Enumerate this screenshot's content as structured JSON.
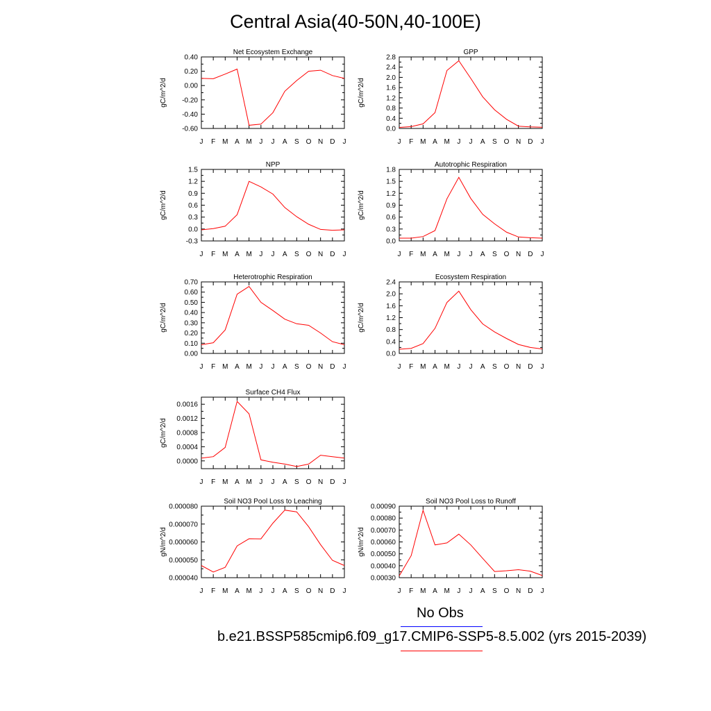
{
  "title": "Central Asia(40-50N,40-100E)",
  "months": [
    "J",
    "F",
    "M",
    "A",
    "M",
    "J",
    "J",
    "A",
    "S",
    "O",
    "N",
    "D",
    "J"
  ],
  "legend": {
    "obs_label": "No Obs",
    "model_label": "b.e21.BSSP585cmip6.f09_g17.CMIP6-SSP5-8.5.002 (yrs 2015-2039)",
    "obs_color": "#0000ff",
    "model_color": "#ff0000"
  },
  "chart_data": [
    {
      "type": "line",
      "title": "Net Ecosystem Exchange",
      "ylabel": "gC/m^2/d",
      "ylim": [
        -0.6,
        0.4
      ],
      "yticks": [
        -0.6,
        -0.4,
        -0.2,
        0.0,
        0.2,
        0.4
      ],
      "ytick_labels": [
        "-0.60",
        "-0.40",
        "-0.20",
        "0.00",
        "0.20",
        "0.40"
      ],
      "values": [
        0.1,
        0.095,
        0.16,
        0.23,
        -0.555,
        -0.54,
        -0.38,
        -0.08,
        0.07,
        0.2,
        0.215,
        0.14,
        0.1
      ],
      "color": "#ff0000"
    },
    {
      "type": "line",
      "title": "GPP",
      "ylabel": "gC/m^2/d",
      "ylim": [
        0,
        2.8
      ],
      "yticks": [
        0,
        0.4,
        0.8,
        1.2,
        1.6,
        2.0,
        2.4,
        2.8
      ],
      "ytick_labels": [
        "0.0",
        "0.4",
        "0.8",
        "1.2",
        "1.6",
        "2.0",
        "2.4",
        "2.8"
      ],
      "values": [
        0.04,
        0.07,
        0.18,
        0.62,
        2.27,
        2.65,
        1.96,
        1.24,
        0.73,
        0.36,
        0.09,
        0.06,
        0.05
      ],
      "color": "#ff0000"
    },
    {
      "type": "line",
      "title": "NPP",
      "ylabel": "gC/m^2/d",
      "ylim": [
        -0.3,
        1.5
      ],
      "yticks": [
        -0.3,
        0.0,
        0.3,
        0.6,
        0.9,
        1.2,
        1.5
      ],
      "ytick_labels": [
        "-0.3",
        "0.0",
        "0.3",
        "0.6",
        "0.9",
        "1.2",
        "1.5"
      ],
      "values": [
        -0.02,
        0.01,
        0.07,
        0.36,
        1.2,
        1.06,
        0.88,
        0.54,
        0.31,
        0.12,
        -0.01,
        -0.03,
        -0.02
      ],
      "color": "#ff0000"
    },
    {
      "type": "line",
      "title": "Autotrophic Respiration",
      "ylabel": "gC/m^2/d",
      "ylim": [
        0,
        1.8
      ],
      "yticks": [
        0,
        0.3,
        0.6,
        0.9,
        1.2,
        1.5,
        1.8
      ],
      "ytick_labels": [
        "0.0",
        "0.3",
        "0.6",
        "0.9",
        "1.2",
        "1.5",
        "1.8"
      ],
      "values": [
        0.07,
        0.07,
        0.11,
        0.26,
        1.06,
        1.6,
        1.07,
        0.67,
        0.43,
        0.22,
        0.1,
        0.08,
        0.07
      ],
      "color": "#ff0000"
    },
    {
      "type": "line",
      "title": "Heterotrophic Respiration",
      "ylabel": "gC/m^2/d",
      "ylim": [
        0,
        0.7
      ],
      "yticks": [
        0,
        0.1,
        0.2,
        0.3,
        0.4,
        0.5,
        0.6,
        0.7
      ],
      "ytick_labels": [
        "0.00",
        "0.10",
        "0.20",
        "0.30",
        "0.40",
        "0.50",
        "0.60",
        "0.70"
      ],
      "values": [
        0.085,
        0.105,
        0.23,
        0.58,
        0.655,
        0.5,
        0.42,
        0.335,
        0.29,
        0.275,
        0.2,
        0.115,
        0.085
      ],
      "color": "#ff0000"
    },
    {
      "type": "line",
      "title": "Ecosystem Respiration",
      "ylabel": "gC/m^2/d",
      "ylim": [
        0,
        2.4
      ],
      "yticks": [
        0,
        0.4,
        0.8,
        1.2,
        1.6,
        2.0,
        2.4
      ],
      "ytick_labels": [
        "0.0",
        "0.4",
        "0.8",
        "1.2",
        "1.6",
        "2.0",
        "2.4"
      ],
      "values": [
        0.14,
        0.17,
        0.33,
        0.84,
        1.71,
        2.09,
        1.47,
        0.99,
        0.72,
        0.5,
        0.3,
        0.2,
        0.15
      ],
      "color": "#ff0000"
    },
    {
      "type": "line",
      "title": "Surface CH4 Flux",
      "ylabel": "gC/m^2/d",
      "ylim": [
        -0.00022,
        0.0018
      ],
      "yticks": [
        0,
        0.0004,
        0.0008,
        0.0012,
        0.0016
      ],
      "ytick_labels": [
        "0.0000",
        "0.0004",
        "0.0008",
        "0.0012",
        "0.0016"
      ],
      "values": [
        8e-05,
        0.00012,
        0.00038,
        0.00168,
        0.00133,
        3e-05,
        -4e-05,
        -9e-05,
        -0.00016,
        -9e-05,
        0.00016,
        0.00012,
        8e-05
      ],
      "color": "#ff0000"
    },
    {
      "type": "line",
      "title": "Soil NO3 Pool Loss to Leaching",
      "ylabel": "gN/m^2/d",
      "ylim": [
        4e-05,
        8e-05
      ],
      "yticks": [
        4e-05,
        5e-05,
        6e-05,
        7e-05,
        8e-05
      ],
      "ytick_labels": [
        "0.000040",
        "0.000050",
        "0.000060",
        "0.000070",
        "0.000080"
      ],
      "values": [
        4.68e-05,
        4.32e-05,
        4.58e-05,
        5.78e-05,
        6.18e-05,
        6.17e-05,
        7.05e-05,
        7.78e-05,
        7.68e-05,
        6.85e-05,
        5.85e-05,
        4.97e-05,
        4.68e-05
      ],
      "color": "#ff0000"
    },
    {
      "type": "line",
      "title": "Soil NO3 Pool Loss to Runoff",
      "ylabel": "gN/m^2/d",
      "ylim": [
        0.0003,
        0.0009
      ],
      "yticks": [
        0.0003,
        0.0004,
        0.0005,
        0.0006,
        0.0007,
        0.0008,
        0.0009
      ],
      "ytick_labels": [
        "0.00030",
        "0.00040",
        "0.00050",
        "0.00060",
        "0.00070",
        "0.00080",
        "0.00090"
      ],
      "values": [
        0.000315,
        0.000485,
        0.000865,
        0.000575,
        0.000592,
        0.000665,
        0.000575,
        0.000462,
        0.000352,
        0.000358,
        0.000367,
        0.000355,
        0.000318
      ],
      "color": "#ff0000"
    }
  ]
}
